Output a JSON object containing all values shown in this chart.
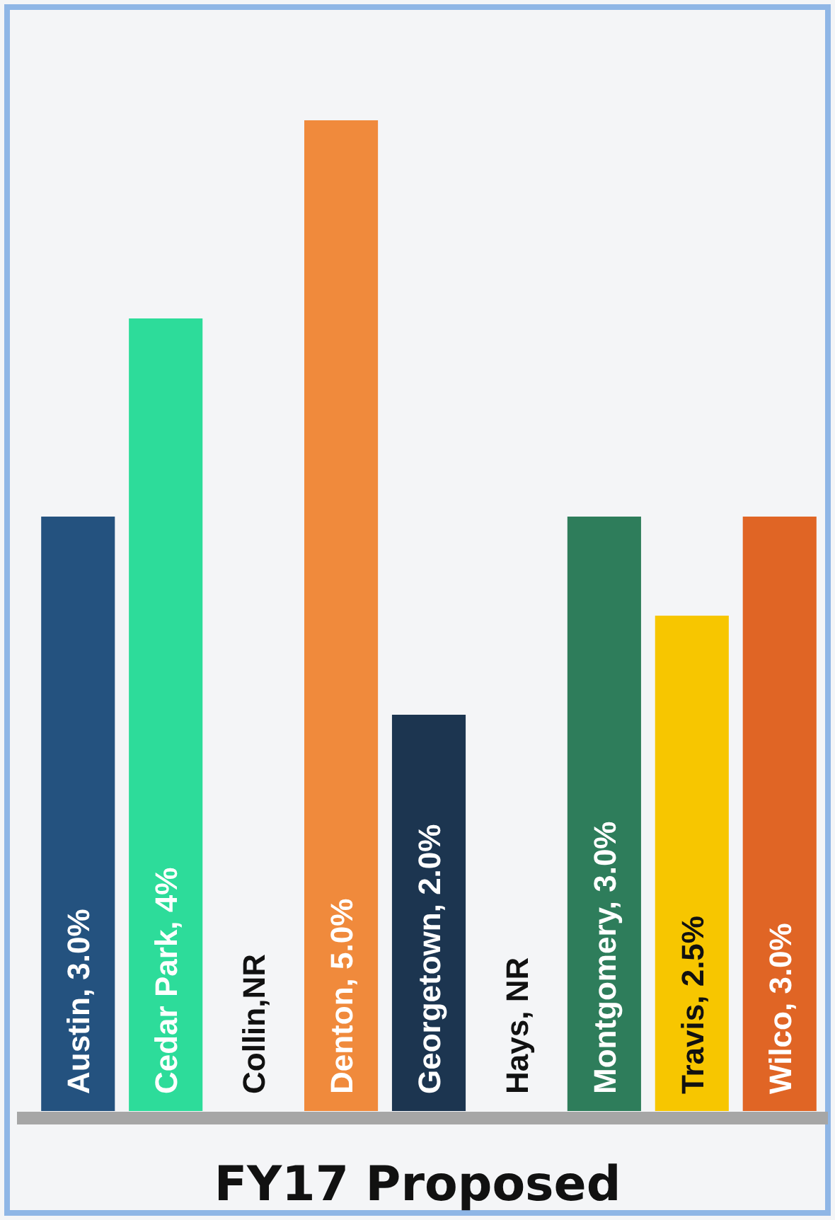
{
  "chart_data": {
    "type": "bar",
    "title": "FY17 Proposed",
    "categories": [
      "Austin",
      "Cedar Park",
      "Collin",
      "Denton",
      "Georgetown",
      "Hays",
      "Montgomery",
      "Travis",
      "Wilco"
    ],
    "values": [
      3.0,
      4,
      null,
      5.0,
      2.0,
      null,
      3.0,
      2.5,
      3.0
    ],
    "value_labels": [
      ", 3.0%",
      ", 4%",
      ",NR",
      ", 5.0%",
      ", 2.0%",
      ", NR",
      ", 3.0%",
      ", 2.5%",
      ", 3.0%"
    ],
    "colors": [
      "#24527f",
      "#2ddc9a",
      "#ffffff",
      "#f08a3c",
      "#1c3550",
      "#ffffff",
      "#2e7d5b",
      "#f7c600",
      "#e06525"
    ],
    "grid": false
  }
}
